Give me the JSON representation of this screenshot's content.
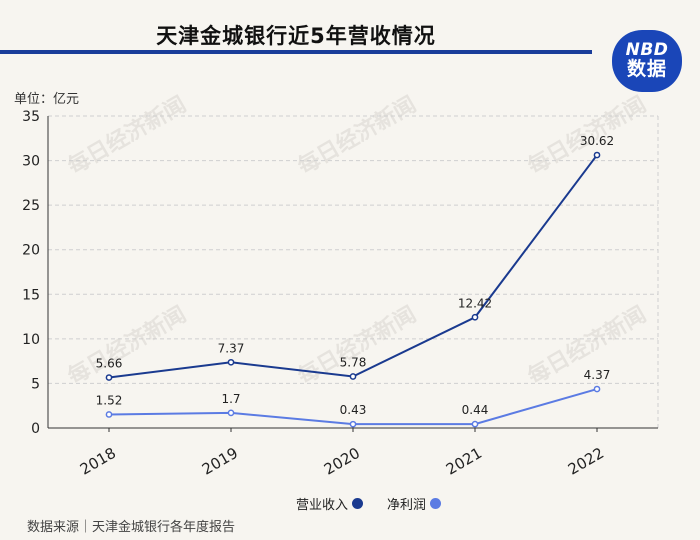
{
  "title": "天津金城银行近5年营收情况",
  "logo": {
    "line1": "NBD",
    "line2": "数据"
  },
  "unit_label": "单位：亿元",
  "source": "数据来源｜天津金城银行各年度报告",
  "watermark": "每日经济新闻",
  "colors": {
    "revenue": "#1a3a8f",
    "profit": "#5b7be3",
    "grid": "#cfcfcf",
    "title_bar": "#1a3d9a",
    "logo_bg": "#1a46b8"
  },
  "chart_data": {
    "type": "line",
    "categories": [
      "2018",
      "2019",
      "2020",
      "2021",
      "2022"
    ],
    "ylim": [
      0,
      35
    ],
    "yticks": [
      0,
      5,
      10,
      15,
      20,
      25,
      30,
      35
    ],
    "grid": true,
    "legend_position": "bottom",
    "series": [
      {
        "name": "营业收入",
        "values": [
          5.66,
          7.37,
          5.78,
          12.42,
          30.62
        ],
        "labels": [
          "5.66",
          "7.37",
          "5.78",
          "12.42",
          "30.62"
        ]
      },
      {
        "name": "净利润",
        "values": [
          1.52,
          1.7,
          0.43,
          0.44,
          4.37
        ],
        "labels": [
          "1.52",
          "1.7",
          "0.43",
          "0.44",
          "4.37"
        ]
      }
    ]
  }
}
